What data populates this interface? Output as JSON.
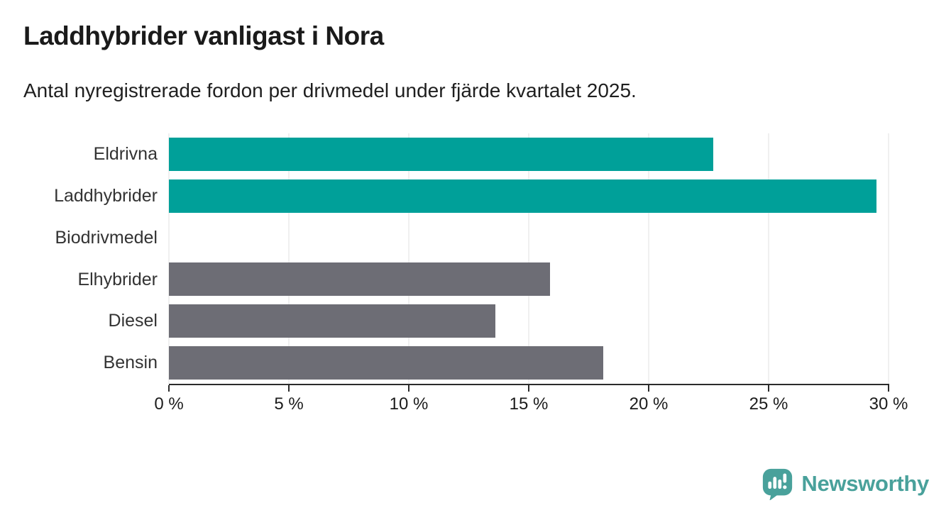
{
  "chart_data": {
    "type": "bar",
    "orientation": "horizontal",
    "title": "Laddhybrider vanligast i Nora",
    "subtitle": "Antal nyregistrerade fordon per drivmedel under fjärde kvartalet 2025.",
    "categories": [
      "Eldrivna",
      "Laddhybrider",
      "Biodrivmedel",
      "Elhybrider",
      "Diesel",
      "Bensin"
    ],
    "values": [
      22.7,
      29.5,
      0,
      15.9,
      13.6,
      18.1
    ],
    "unit": "%",
    "xlim": [
      0,
      30
    ],
    "x_ticks": [
      0,
      5,
      10,
      15,
      20,
      25,
      30
    ],
    "x_tick_labels": [
      "0 %",
      "5 %",
      "10 %",
      "15 %",
      "20 %",
      "25 %",
      "30 %"
    ],
    "bar_colors": [
      "#00a099",
      "#00a099",
      "#6d6d75",
      "#6d6d75",
      "#6d6d75",
      "#6d6d75"
    ],
    "highlight_color": "#00a099",
    "default_color": "#6d6d75",
    "grid": true,
    "legend": "none"
  },
  "footer": {
    "brand": "Newsworthy",
    "brand_color": "#49a19b",
    "icon": "speech-bubble-bar-chart-icon"
  }
}
